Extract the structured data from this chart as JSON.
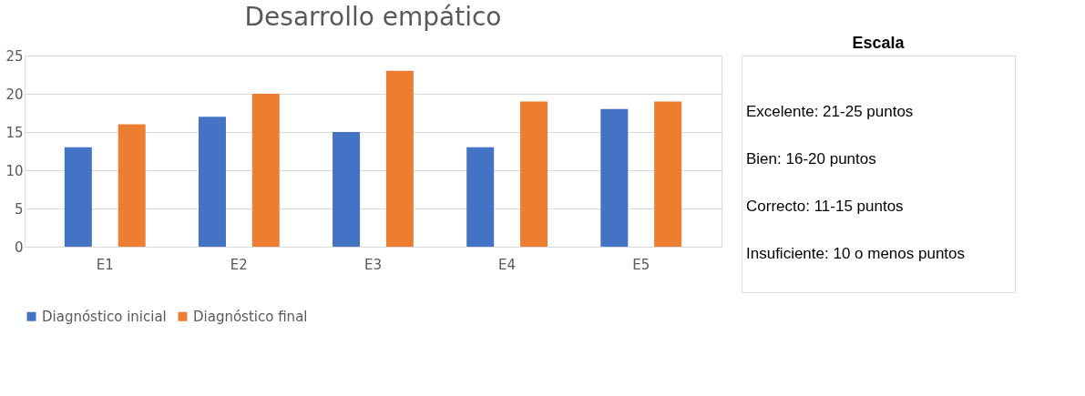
{
  "chart_data": [
    {
      "type": "bar",
      "title": "Desarrollo empático",
      "categories": [
        "E1",
        "E2",
        "E3",
        "E4",
        "E5"
      ],
      "series": [
        {
          "name": "Diagnóstico inicial",
          "color": "#4472c4",
          "values": [
            13,
            17,
            15,
            13,
            18
          ]
        },
        {
          "name": "Diagnóstico final",
          "color": "#ed7d31",
          "values": [
            16,
            20,
            23,
            19,
            19
          ]
        }
      ],
      "ylim": [
        0,
        25
      ],
      "yticks": [
        0,
        5,
        10,
        15,
        20,
        25
      ],
      "grid": "y",
      "legend": "bottom"
    },
    {
      "type": "other",
      "title": "Escala",
      "annotations": [
        "Excelente: 21-25 puntos",
        "Bien: 16-20 puntos",
        "Correcto: 11-15 puntos",
        "Insuficiente: 10 o menos puntos"
      ]
    }
  ]
}
